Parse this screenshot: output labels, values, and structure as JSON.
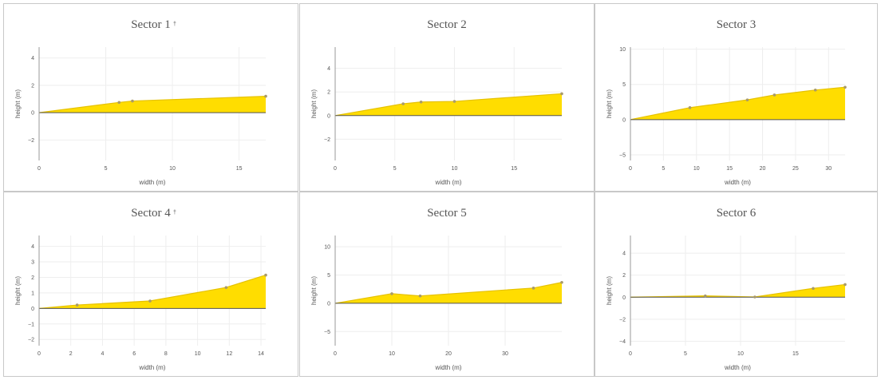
{
  "colors": {
    "fill": "#ffdd00",
    "line": "#e6c200",
    "point": "#a89a6a",
    "grid": "#eeeeee",
    "zero": "#555555",
    "axis": "#999999"
  },
  "chart_data": [
    {
      "type": "area",
      "title": "Sector 1",
      "mark": "†",
      "xlabel": "width (m)",
      "ylabel": "height (m)",
      "xlim": [
        0,
        17
      ],
      "ylim": [
        -3.5,
        4.8
      ],
      "xticks": [
        0,
        5,
        10,
        15
      ],
      "yticks": [
        -2,
        0,
        2,
        4
      ],
      "x": [
        0,
        6,
        7,
        17
      ],
      "y": [
        0,
        0.75,
        0.85,
        1.2
      ]
    },
    {
      "type": "area",
      "title": "Sector 2",
      "xlabel": "width (m)",
      "ylabel": "height (m)",
      "xlim": [
        0,
        19
      ],
      "ylim": [
        -3.8,
        5.8
      ],
      "xticks": [
        0,
        5,
        10,
        15
      ],
      "yticks": [
        -2,
        0,
        2,
        4
      ],
      "x": [
        0,
        5.7,
        7.2,
        10,
        19
      ],
      "y": [
        0,
        1.0,
        1.15,
        1.2,
        1.85
      ]
    },
    {
      "type": "area",
      "title": "Sector 3",
      "xlabel": "width (m)",
      "ylabel": "height (m)",
      "xlim": [
        0,
        32.5
      ],
      "ylim": [
        -5.8,
        10.3
      ],
      "xticks": [
        0,
        5,
        10,
        15,
        20,
        25,
        30
      ],
      "yticks": [
        -5,
        0,
        5,
        10
      ],
      "x": [
        0,
        9,
        17.7,
        21.8,
        28,
        32.5
      ],
      "y": [
        0,
        1.7,
        2.8,
        3.5,
        4.2,
        4.6
      ]
    },
    {
      "type": "area",
      "title": "Sector 4",
      "mark": "†",
      "xlabel": "width (m)",
      "ylabel": "height (m)",
      "xlim": [
        0,
        14.3
      ],
      "ylim": [
        -2.4,
        4.7
      ],
      "xticks": [
        0,
        2,
        4,
        6,
        8,
        10,
        12,
        14
      ],
      "yticks": [
        -2,
        -1,
        0,
        1,
        2,
        3,
        4
      ],
      "x": [
        0,
        2.4,
        7,
        11.8,
        14.3
      ],
      "y": [
        0,
        0.22,
        0.48,
        1.35,
        2.15
      ]
    },
    {
      "type": "area",
      "title": "Sector 5",
      "xlabel": "width (m)",
      "ylabel": "height (m)",
      "xlim": [
        0,
        40
      ],
      "ylim": [
        -7.5,
        12
      ],
      "xticks": [
        0,
        10,
        20,
        30
      ],
      "yticks": [
        -5,
        0,
        5,
        10
      ],
      "x": [
        0,
        10,
        15,
        35,
        40
      ],
      "y": [
        0,
        1.7,
        1.3,
        2.7,
        3.7
      ]
    },
    {
      "type": "area",
      "title": "Sector 6",
      "xlabel": "width (m)",
      "ylabel": "height (m)",
      "xlim": [
        0,
        19.5
      ],
      "ylim": [
        -4.4,
        5.6
      ],
      "xticks": [
        0,
        5,
        10,
        15
      ],
      "yticks": [
        -4,
        -2,
        0,
        2,
        4
      ],
      "x": [
        0,
        6.8,
        11.3,
        16.6,
        19.5
      ],
      "y": [
        0,
        0.12,
        0.02,
        0.8,
        1.15
      ]
    }
  ]
}
